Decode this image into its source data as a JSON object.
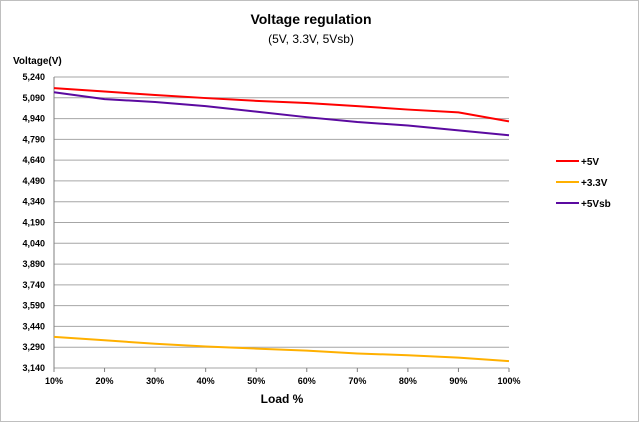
{
  "chart_data": {
    "type": "line",
    "title": "Voltage regulation",
    "subtitle": "(5V, 3.3V, 5Vsb)",
    "xlabel": "Load %",
    "ylabel": "Voltage(V)",
    "categories": [
      "10%",
      "20%",
      "30%",
      "40%",
      "50%",
      "60%",
      "70%",
      "80%",
      "90%",
      "100%"
    ],
    "y_ticks": [
      "3,140",
      "3,290",
      "3,440",
      "3,590",
      "3,740",
      "3,890",
      "4,040",
      "4,190",
      "4,340",
      "4,490",
      "4,640",
      "4,790",
      "4,940",
      "5,090",
      "5,240"
    ],
    "ylim": [
      3140,
      5240
    ],
    "grid": true,
    "legend_position": "right",
    "series": [
      {
        "name": "+5V",
        "color": "#ff0000",
        "values": [
          5160,
          5135,
          5110,
          5088,
          5068,
          5052,
          5030,
          5005,
          4985,
          4920
        ]
      },
      {
        "name": "+3.3V",
        "color": "#ffb000",
        "values": [
          3365,
          3340,
          3315,
          3295,
          3280,
          3265,
          3245,
          3232,
          3215,
          3190
        ]
      },
      {
        "name": "+5Vsb",
        "color": "#5b0aa0",
        "values": [
          5130,
          5080,
          5060,
          5030,
          4990,
          4950,
          4915,
          4890,
          4855,
          4820
        ]
      }
    ]
  }
}
